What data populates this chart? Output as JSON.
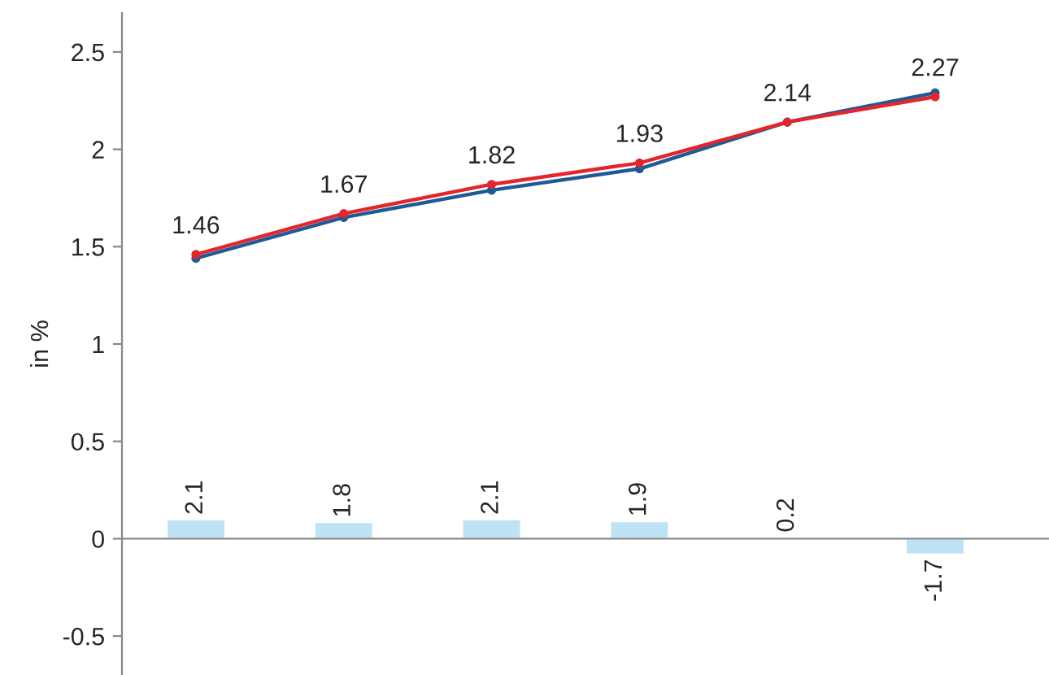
{
  "chart_data": {
    "type": "line",
    "ylabel": "in %",
    "categories": [
      null,
      null,
      null,
      null,
      null,
      null
    ],
    "series": [
      {
        "type": "bar",
        "axis": "y2",
        "color": "#bde3f5",
        "values": [
          2.1,
          1.8,
          2.1,
          1.9,
          0.2,
          -1.7
        ],
        "value_labels": [
          "2.1",
          "1.8",
          "2.1",
          "1.9",
          "0.2",
          "-1.7"
        ]
      },
      {
        "color": "#1f5a96",
        "values": [
          1.44,
          1.65,
          1.79,
          1.9,
          2.14,
          2.29
        ]
      },
      {
        "color": "#e3262b",
        "values": [
          1.46,
          1.67,
          1.82,
          1.93,
          2.14,
          2.27
        ],
        "value_labels": [
          "1.46",
          "1.67",
          "1.82",
          "1.93",
          "2.14",
          "2.27"
        ]
      }
    ],
    "ylim": [
      -0.7,
      2.7
    ],
    "yticks": [
      -0.5,
      0,
      0.5,
      1,
      1.5,
      2,
      2.5
    ],
    "y2lim": [
      -14.7,
      56.7
    ],
    "tick_labels": "y",
    "legend": false,
    "marker": "circle",
    "line_style": "solid"
  }
}
